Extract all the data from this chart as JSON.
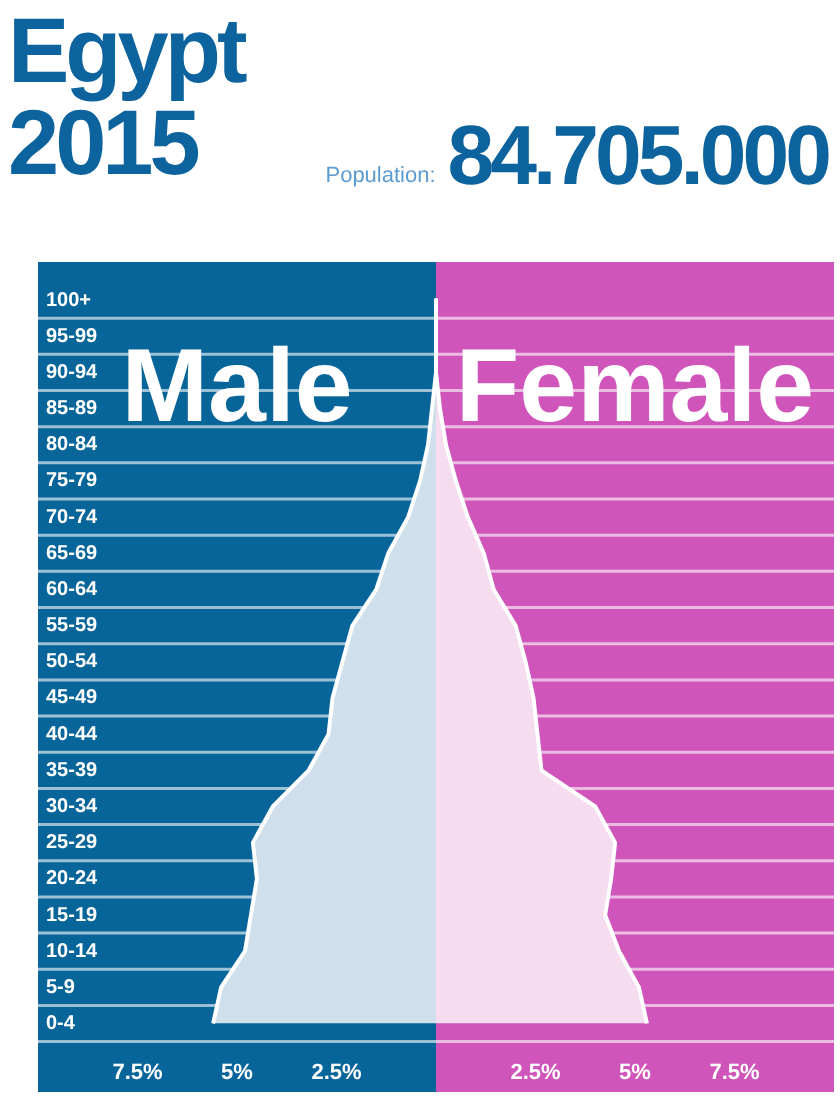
{
  "chart_data": {
    "type": "area",
    "orientation": "horizontal",
    "title": "Egypt",
    "subtitle": "2015",
    "annotations": [
      "Population:",
      "84.705.000"
    ],
    "categories": [
      "100+",
      "95-99",
      "90-94",
      "85-89",
      "80-84",
      "75-79",
      "70-74",
      "65-69",
      "60-64",
      "55-59",
      "50-54",
      "45-49",
      "40-44",
      "35-39",
      "30-34",
      "25-29",
      "20-24",
      "15-19",
      "10-14",
      "5-9",
      "0-4"
    ],
    "series": [
      {
        "name": "Male",
        "color": "#cfe0ec",
        "values": [
          0,
          0,
          0,
          -0.1,
          -0.2,
          -0.4,
          -0.7,
          -1.2,
          -1.5,
          -2.1,
          -2.35,
          -2.6,
          -2.7,
          -3.2,
          -4.1,
          -4.6,
          -4.5,
          -4.65,
          -4.8,
          -5.4,
          -5.6
        ]
      },
      {
        "name": "Female",
        "color": "#f5dcef",
        "values": [
          0,
          0,
          0,
          0.1,
          0.25,
          0.5,
          0.8,
          1.2,
          1.45,
          2.0,
          2.25,
          2.45,
          2.55,
          2.65,
          4.0,
          4.5,
          4.4,
          4.25,
          4.6,
          5.1,
          5.3
        ]
      }
    ],
    "bands": [
      {
        "axis": "x",
        "from": -10,
        "to": 0,
        "color": "#08659a"
      },
      {
        "axis": "x",
        "from": 0,
        "to": 10,
        "color": "#d055bb"
      }
    ],
    "xlim": [
      -10,
      10
    ],
    "xticks": [
      {
        "value": -7.5,
        "label": "7.5%"
      },
      {
        "value": -5,
        "label": "5%"
      },
      {
        "value": -2.5,
        "label": "2.5%"
      },
      {
        "value": 2.5,
        "label": "2.5%"
      },
      {
        "value": 5,
        "label": "5%"
      },
      {
        "value": 7.5,
        "label": "7.5%"
      }
    ],
    "grid": "y",
    "legend": false
  }
}
